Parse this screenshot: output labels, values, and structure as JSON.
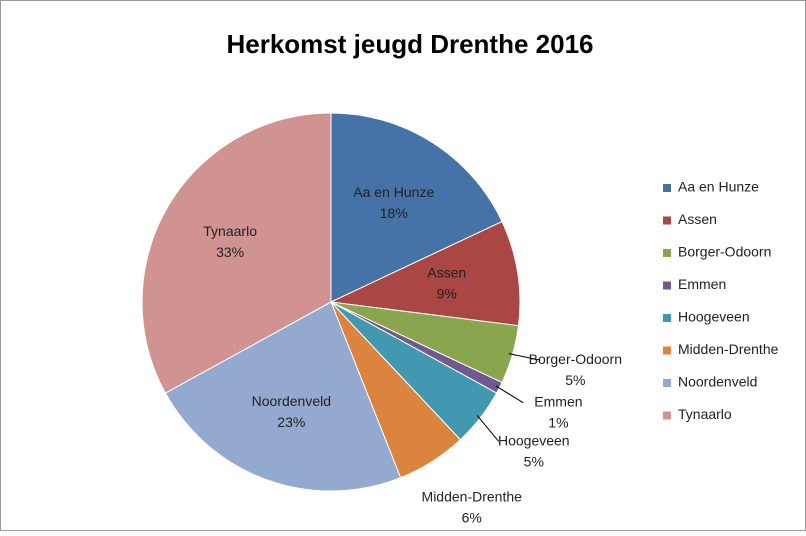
{
  "chart_data": {
    "type": "pie",
    "title": "Herkomst jeugd Drenthe 2016",
    "categories": [
      "Aa en Hunze",
      "Assen",
      "Borger-Odoorn",
      "Emmen",
      "Hoogeveen",
      "Midden-Drenthe",
      "Noordenveld",
      "Tynaarlo"
    ],
    "values": [
      18,
      9,
      5,
      1,
      5,
      6,
      23,
      33
    ],
    "value_labels": [
      "18%",
      "9%",
      "5%",
      "1%",
      "5%",
      "6%",
      "23%",
      "33%"
    ],
    "colors": [
      "#4572a7",
      "#aa4643",
      "#89a54e",
      "#71588f",
      "#4198af",
      "#db843d",
      "#93a9cf",
      "#d19392"
    ],
    "legend": "right"
  }
}
